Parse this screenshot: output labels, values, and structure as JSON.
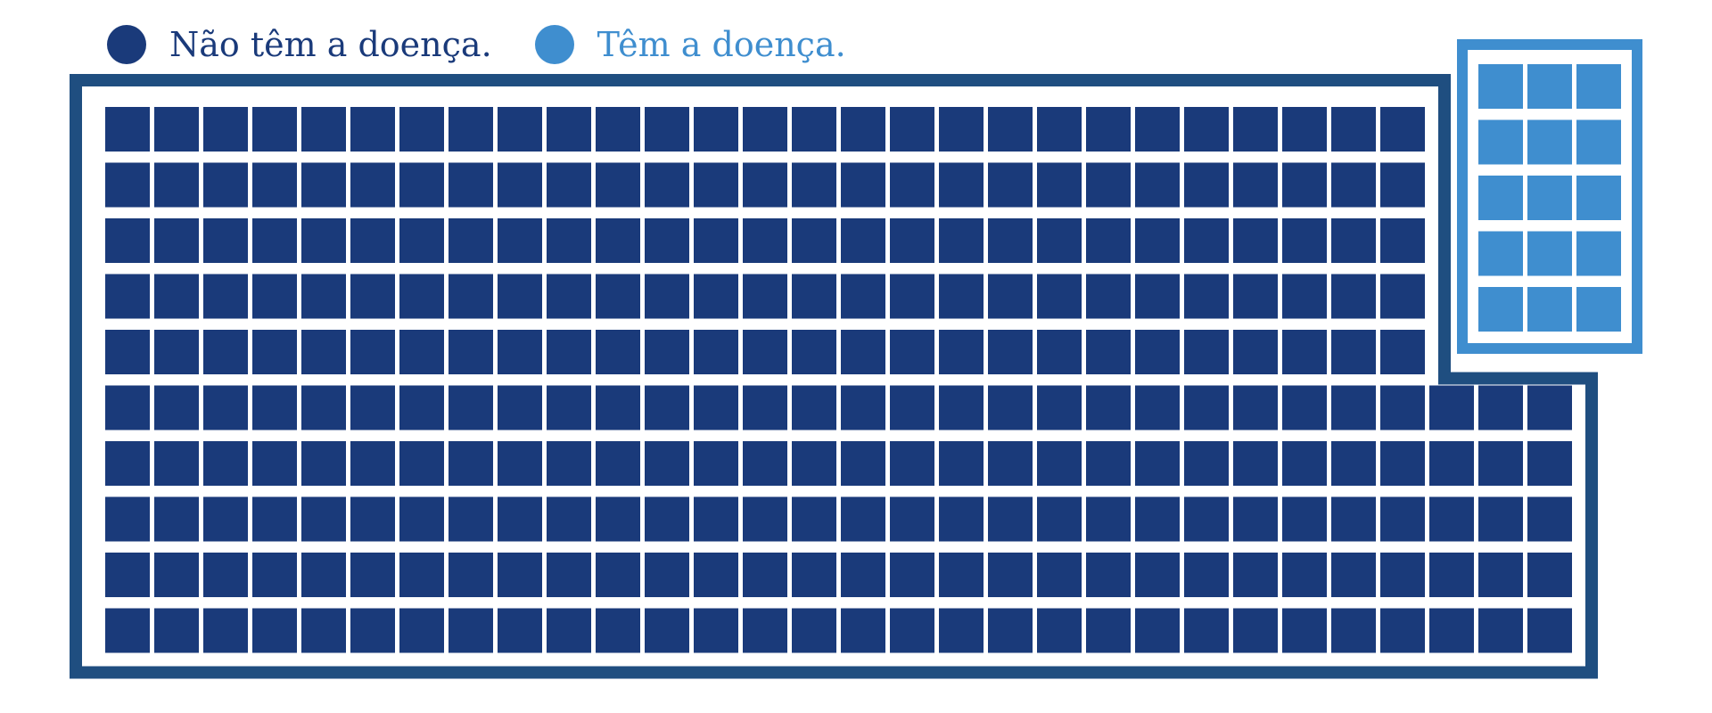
{
  "legend": {
    "no_disease_label": "Não têm a doença.",
    "disease_label": "Têm a doença."
  },
  "colors": {
    "no_disease": "#1a3a7a",
    "no_disease_frame": "#1f4e80",
    "disease": "#3f8ecf",
    "disease_frame": "#3f8ecf",
    "background": "#ffffff"
  },
  "chart_data": {
    "type": "waffle",
    "groups": [
      {
        "label": "Não têm a doença.",
        "count": 285,
        "rows": 10,
        "columns_top": 27,
        "columns_bottom": 30,
        "top_rows": 5
      },
      {
        "label": "Têm a doença.",
        "count": 15,
        "rows": 5,
        "columns": 3
      }
    ],
    "total": 300,
    "legend_position": "top-left"
  }
}
